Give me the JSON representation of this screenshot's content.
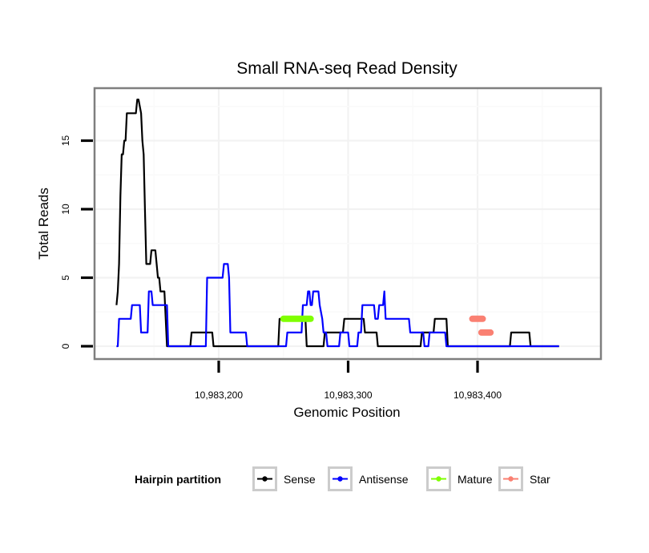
{
  "chart_data": {
    "type": "line",
    "title": "Small RNA-seq Read Density",
    "xlabel": "Genomic Position",
    "ylabel": "Total Reads",
    "xlim": [
      10983078,
      10983470
    ],
    "ylim": [
      -1,
      19
    ],
    "grid": true,
    "x_ticks": [
      10983200,
      10983300,
      10983400
    ],
    "x_tick_labels": [
      "10,983,200",
      "10,983,300",
      "10,983,400"
    ],
    "y_ticks": [
      0,
      5,
      10,
      15
    ],
    "y_tick_labels": [
      "0",
      "5",
      "10",
      "15"
    ],
    "legend": {
      "title": "Hairpin partition",
      "placement": "bottom",
      "entries": [
        {
          "label": "Sense",
          "color": "#000000"
        },
        {
          "label": "Antisense",
          "color": "#0000ff"
        },
        {
          "label": "Mature",
          "color": "#7fff00"
        },
        {
          "label": "Star",
          "color": "#fa8072"
        }
      ]
    },
    "series": [
      {
        "name": "Sense",
        "color": "#000000",
        "points": [
          [
            10983121,
            3
          ],
          [
            10983122,
            4
          ],
          [
            10983123,
            6
          ],
          [
            10983124,
            11
          ],
          [
            10983125,
            14
          ],
          [
            10983126,
            14
          ],
          [
            10983127,
            15
          ],
          [
            10983128,
            15
          ],
          [
            10983129,
            17
          ],
          [
            10983136,
            17
          ],
          [
            10983137,
            18
          ],
          [
            10983138,
            18
          ],
          [
            10983140,
            17
          ],
          [
            10983141,
            15
          ],
          [
            10983142,
            14
          ],
          [
            10983143,
            10
          ],
          [
            10983144,
            6
          ],
          [
            10983147,
            6
          ],
          [
            10983148,
            7
          ],
          [
            10983151,
            7
          ],
          [
            10983152,
            6
          ],
          [
            10983153,
            5
          ],
          [
            10983154,
            5
          ],
          [
            10983155,
            4
          ],
          [
            10983158,
            4
          ],
          [
            10983159,
            2
          ],
          [
            10983160,
            0
          ],
          [
            10983178,
            0
          ],
          [
            10983179,
            1
          ],
          [
            10983195,
            1
          ],
          [
            10983196,
            0
          ],
          [
            10983246,
            0
          ],
          [
            10983247,
            2
          ],
          [
            10983267,
            2
          ],
          [
            10983268,
            0
          ],
          [
            10983281,
            0
          ],
          [
            10983282,
            1
          ],
          [
            10983296,
            1
          ],
          [
            10983297,
            2
          ],
          [
            10983312,
            2
          ],
          [
            10983313,
            1
          ],
          [
            10983322,
            1
          ],
          [
            10983323,
            0
          ],
          [
            10983356,
            0
          ],
          [
            10983357,
            1
          ],
          [
            10983366,
            1
          ],
          [
            10983367,
            2
          ],
          [
            10983376,
            2
          ],
          [
            10983377,
            0
          ],
          [
            10983425,
            0
          ],
          [
            10983426,
            1
          ],
          [
            10983440,
            1
          ],
          [
            10983441,
            0
          ],
          [
            10983463,
            0
          ]
        ]
      },
      {
        "name": "Antisense",
        "color": "#0000ff",
        "points": [
          [
            10983121,
            0
          ],
          [
            10983122,
            0
          ],
          [
            10983123,
            2
          ],
          [
            10983132,
            2
          ],
          [
            10983133,
            3
          ],
          [
            10983139,
            3
          ],
          [
            10983140,
            1
          ],
          [
            10983145,
            1
          ],
          [
            10983146,
            4
          ],
          [
            10983148,
            4
          ],
          [
            10983149,
            3
          ],
          [
            10983160,
            3
          ],
          [
            10983161,
            0
          ],
          [
            10983190,
            0
          ],
          [
            10983191,
            5
          ],
          [
            10983203,
            5
          ],
          [
            10983204,
            6
          ],
          [
            10983207,
            6
          ],
          [
            10983208,
            5
          ],
          [
            10983209,
            1
          ],
          [
            10983221,
            1
          ],
          [
            10983222,
            0
          ],
          [
            10983252,
            0
          ],
          [
            10983253,
            1
          ],
          [
            10983264,
            1
          ],
          [
            10983265,
            3
          ],
          [
            10983268,
            3
          ],
          [
            10983269,
            4
          ],
          [
            10983270,
            4
          ],
          [
            10983271,
            3
          ],
          [
            10983272,
            3
          ],
          [
            10983273,
            4
          ],
          [
            10983277,
            4
          ],
          [
            10983278,
            3
          ],
          [
            10983280,
            2
          ],
          [
            10983281,
            1
          ],
          [
            10983283,
            1
          ],
          [
            10983284,
            0
          ],
          [
            10983293,
            0
          ],
          [
            10983294,
            1
          ],
          [
            10983300,
            1
          ],
          [
            10983301,
            0
          ],
          [
            10983307,
            0
          ],
          [
            10983308,
            1
          ],
          [
            10983310,
            1
          ],
          [
            10983311,
            3
          ],
          [
            10983320,
            3
          ],
          [
            10983321,
            2
          ],
          [
            10983323,
            2
          ],
          [
            10983324,
            3
          ],
          [
            10983327,
            3
          ],
          [
            10983328,
            4
          ],
          [
            10983329,
            2
          ],
          [
            10983347,
            2
          ],
          [
            10983348,
            1
          ],
          [
            10983358,
            1
          ],
          [
            10983359,
            0
          ],
          [
            10983362,
            0
          ],
          [
            10983363,
            1
          ],
          [
            10983375,
            1
          ],
          [
            10983376,
            0
          ],
          [
            10983463,
            0
          ]
        ]
      },
      {
        "name": "Mature",
        "color": "#7fff00",
        "points": [
          [
            10983250,
            2
          ],
          [
            10983271,
            2
          ]
        ]
      },
      {
        "name": "Star",
        "color": "#fa8072",
        "points": [
          [
            10983396,
            2
          ],
          [
            10983404,
            2
          ]
        ],
        "segments": [
          [
            [
              10983396,
              2
            ],
            [
              10983404,
              2
            ]
          ],
          [
            [
              10983403,
              1
            ],
            [
              10983410,
              1
            ]
          ]
        ]
      }
    ]
  }
}
